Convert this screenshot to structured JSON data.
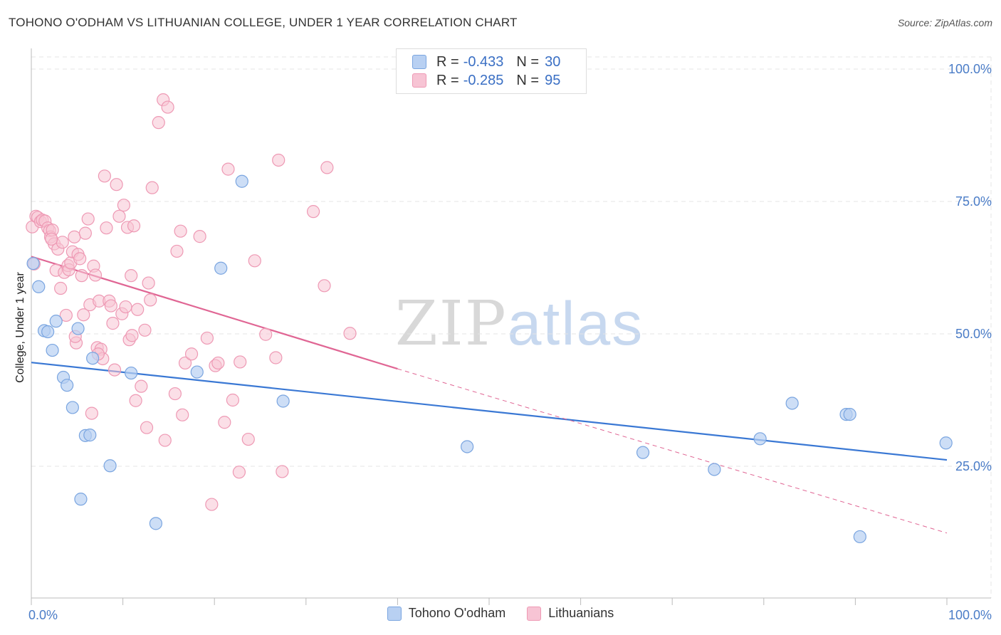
{
  "title": "TOHONO O'ODHAM VS LITHUANIAN COLLEGE, UNDER 1 YEAR CORRELATION CHART",
  "source": "Source: ZipAtlas.com",
  "watermark": {
    "zip": "ZIP",
    "atlas": "atlas"
  },
  "legend": {
    "series1": {
      "r_label": "R =",
      "r_value": "-0.433",
      "n_label": "N =",
      "n_value": "30"
    },
    "series2": {
      "r_label": "R =",
      "r_value": "-0.285",
      "n_label": "N =",
      "n_value": "95"
    }
  },
  "colors": {
    "blue_fill": "#b8d0f2",
    "blue_stroke": "#7aa5e0",
    "blue_line": "#3a78d4",
    "pink_fill": "#f7c4d4",
    "pink_stroke": "#ee99b4",
    "pink_line": "#e06694"
  },
  "chart_data": {
    "type": "scatter",
    "title": "TOHONO O'ODHAM VS LITHUANIAN COLLEGE, UNDER 1 YEAR CORRELATION CHART",
    "xlabel": "",
    "ylabel": "College, Under 1 year",
    "xlim": [
      0,
      100
    ],
    "ylim": [
      0,
      105
    ],
    "x_tick_labels": [
      "0.0%",
      "100.0%"
    ],
    "y_ticks": [
      25,
      50,
      75,
      100
    ],
    "y_tick_labels": [
      "25.0%",
      "50.0%",
      "75.0%",
      "100.0%"
    ],
    "series": [
      {
        "name": "Tohono O'odham",
        "r": -0.433,
        "n": 30,
        "trend": {
          "x0": 0,
          "y0": 44.6,
          "x1": 100,
          "y1": 26.2
        },
        "points": [
          [
            0.2,
            63.3
          ],
          [
            0.8,
            58.9
          ],
          [
            1.4,
            50.6
          ],
          [
            1.8,
            50.4
          ],
          [
            2.3,
            46.9
          ],
          [
            2.7,
            52.4
          ],
          [
            3.5,
            41.8
          ],
          [
            3.9,
            40.3
          ],
          [
            4.5,
            36.1
          ],
          [
            5.1,
            51.0
          ],
          [
            5.4,
            18.8
          ],
          [
            5.9,
            30.8
          ],
          [
            6.4,
            30.9
          ],
          [
            6.7,
            45.4
          ],
          [
            8.6,
            25.1
          ],
          [
            10.9,
            42.6
          ],
          [
            13.6,
            14.2
          ],
          [
            18.1,
            42.8
          ],
          [
            20.7,
            62.4
          ],
          [
            23.0,
            78.8
          ],
          [
            27.5,
            37.3
          ],
          [
            47.6,
            28.7
          ],
          [
            66.8,
            27.6
          ],
          [
            74.6,
            24.4
          ],
          [
            79.6,
            30.2
          ],
          [
            83.1,
            36.9
          ],
          [
            89.0,
            34.8
          ],
          [
            89.4,
            34.8
          ],
          [
            90.5,
            11.7
          ],
          [
            99.9,
            29.4
          ]
        ]
      },
      {
        "name": "Lithuanians",
        "r": -0.285,
        "n": 95,
        "trend": {
          "x0": 0,
          "y0": 64.6,
          "x1": 40,
          "y1": 43.4
        },
        "trend_dashed": {
          "x0": 40,
          "y0": 43.4,
          "x1": 100,
          "y1": 12.4
        },
        "points": [
          [
            0.1,
            70.2
          ],
          [
            0.3,
            63.2
          ],
          [
            0.5,
            72.2
          ],
          [
            0.7,
            72.0
          ],
          [
            1.0,
            71.2
          ],
          [
            1.2,
            71.5
          ],
          [
            1.5,
            71.3
          ],
          [
            1.8,
            70.0
          ],
          [
            2.0,
            69.5
          ],
          [
            2.1,
            68.3
          ],
          [
            2.3,
            69.6
          ],
          [
            2.5,
            67.0
          ],
          [
            2.7,
            62.0
          ],
          [
            2.9,
            66.0
          ],
          [
            3.2,
            58.6
          ],
          [
            3.4,
            67.3
          ],
          [
            3.6,
            61.6
          ],
          [
            3.8,
            53.5
          ],
          [
            4.0,
            62.9
          ],
          [
            4.1,
            62.1
          ],
          [
            4.3,
            63.4
          ],
          [
            4.5,
            65.5
          ],
          [
            4.7,
            68.3
          ],
          [
            4.9,
            48.3
          ],
          [
            5.1,
            65.0
          ],
          [
            5.3,
            64.2
          ],
          [
            5.5,
            61.0
          ],
          [
            5.7,
            53.6
          ],
          [
            5.9,
            69.0
          ],
          [
            6.2,
            71.7
          ],
          [
            6.4,
            55.5
          ],
          [
            6.6,
            35.0
          ],
          [
            6.8,
            62.8
          ],
          [
            7.0,
            61.1
          ],
          [
            7.2,
            47.4
          ],
          [
            7.4,
            56.2
          ],
          [
            7.6,
            47.1
          ],
          [
            7.8,
            45.3
          ],
          [
            8.0,
            79.8
          ],
          [
            8.2,
            70.0
          ],
          [
            8.5,
            56.2
          ],
          [
            8.7,
            55.3
          ],
          [
            8.9,
            52.0
          ],
          [
            9.1,
            43.2
          ],
          [
            9.3,
            78.2
          ],
          [
            9.6,
            72.2
          ],
          [
            9.9,
            53.8
          ],
          [
            10.1,
            74.3
          ],
          [
            10.3,
            55.1
          ],
          [
            10.5,
            70.1
          ],
          [
            10.7,
            48.9
          ],
          [
            10.9,
            61.0
          ],
          [
            11.0,
            49.7
          ],
          [
            11.2,
            70.4
          ],
          [
            11.4,
            37.4
          ],
          [
            11.6,
            54.6
          ],
          [
            12.0,
            40.1
          ],
          [
            12.4,
            50.7
          ],
          [
            12.6,
            32.3
          ],
          [
            12.8,
            59.6
          ],
          [
            13.0,
            56.4
          ],
          [
            13.2,
            77.6
          ],
          [
            13.9,
            89.9
          ],
          [
            14.4,
            94.2
          ],
          [
            14.6,
            29.9
          ],
          [
            14.9,
            92.8
          ],
          [
            15.7,
            38.7
          ],
          [
            15.9,
            65.6
          ],
          [
            16.3,
            69.4
          ],
          [
            16.5,
            34.7
          ],
          [
            16.8,
            44.5
          ],
          [
            17.5,
            46.2
          ],
          [
            18.4,
            68.4
          ],
          [
            19.2,
            49.2
          ],
          [
            19.7,
            17.8
          ],
          [
            20.1,
            44.0
          ],
          [
            20.4,
            44.5
          ],
          [
            21.1,
            33.3
          ],
          [
            21.5,
            81.1
          ],
          [
            22.0,
            37.5
          ],
          [
            22.7,
            23.9
          ],
          [
            22.8,
            44.7
          ],
          [
            23.7,
            30.1
          ],
          [
            24.4,
            63.8
          ],
          [
            25.6,
            49.9
          ],
          [
            26.7,
            45.5
          ],
          [
            27.0,
            82.8
          ],
          [
            27.4,
            24.0
          ],
          [
            30.8,
            73.1
          ],
          [
            32.0,
            59.1
          ],
          [
            32.3,
            81.4
          ],
          [
            34.8,
            50.1
          ],
          [
            7.3,
            46.2
          ],
          [
            2.2,
            67.9
          ],
          [
            4.8,
            49.5
          ]
        ]
      }
    ]
  },
  "bottom_legend": {
    "item1": "Tohono O'odham",
    "item2": "Lithuanians"
  }
}
